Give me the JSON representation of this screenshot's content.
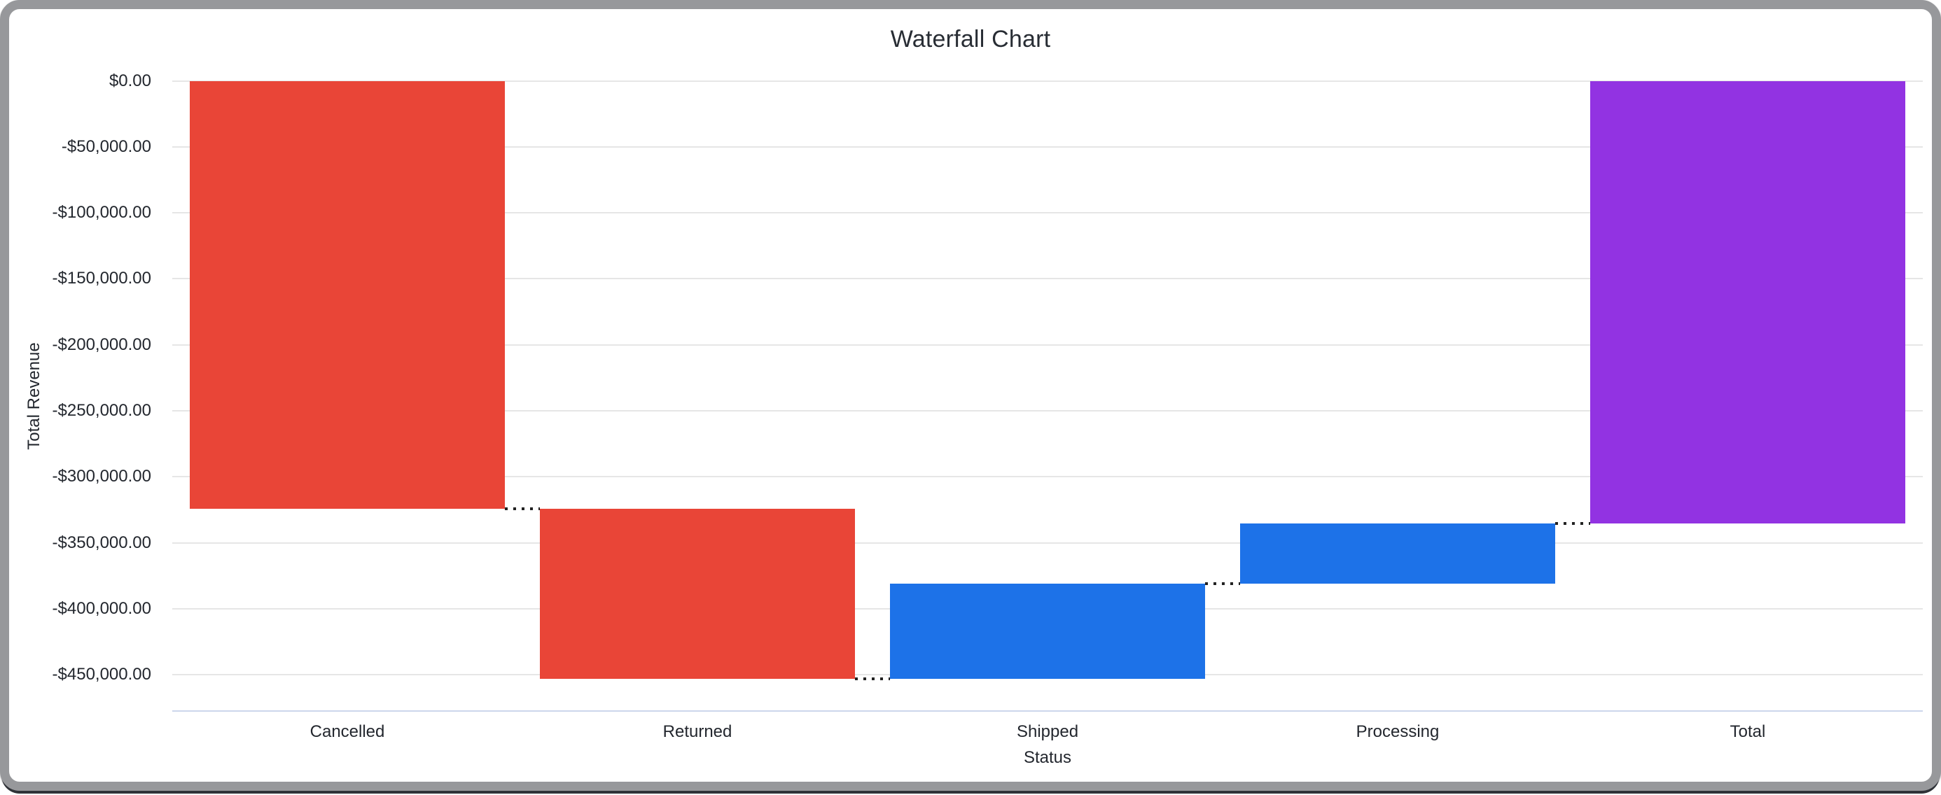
{
  "chart_data": {
    "type": "bar",
    "subtype": "waterfall",
    "title": "Waterfall Chart",
    "xlabel": "Status",
    "ylabel": "Total Revenue",
    "categories": [
      "Cancelled",
      "Returned",
      "Shipped",
      "Processing",
      "Total"
    ],
    "series": [
      {
        "name": "Total Revenue",
        "deltas": [
          -324000,
          -129000,
          72000,
          46000,
          -335000
        ]
      }
    ],
    "cumulative_start": [
      0,
      -324000,
      -453000,
      -381000,
      0
    ],
    "cumulative_end": [
      -324000,
      -453000,
      -381000,
      -335000,
      -335000
    ],
    "total_value": -335000,
    "bar_colors": [
      "#E94537",
      "#E94537",
      "#1D72E8",
      "#1D72E8",
      "#9233E2"
    ],
    "color_roles": {
      "decrease": "#E94537",
      "increase": "#1D72E8",
      "total": "#9233E2"
    },
    "y_ticks": [
      0,
      -50000,
      -100000,
      -150000,
      -200000,
      -250000,
      -300000,
      -350000,
      -400000,
      -450000
    ],
    "y_tick_labels": [
      "$0.00",
      "-$50,000.00",
      "-$100,000.00",
      "-$150,000.00",
      "-$200,000.00",
      "-$250,000.00",
      "-$300,000.00",
      "-$350,000.00",
      "-$400,000.00",
      "-$450,000.00"
    ],
    "ylim": [
      -477500,
      0
    ],
    "grid": true,
    "legend": false,
    "connector_style": "dotted"
  },
  "colors": {
    "grid": "#E6E6E6",
    "axis_line": "#CCD6EB",
    "connector": "#222222",
    "text": "#23272E",
    "title_text": "#282D34",
    "frame_border": "#97989B",
    "frame_shadow": "#2F3237",
    "background": "#FFFFFF"
  }
}
